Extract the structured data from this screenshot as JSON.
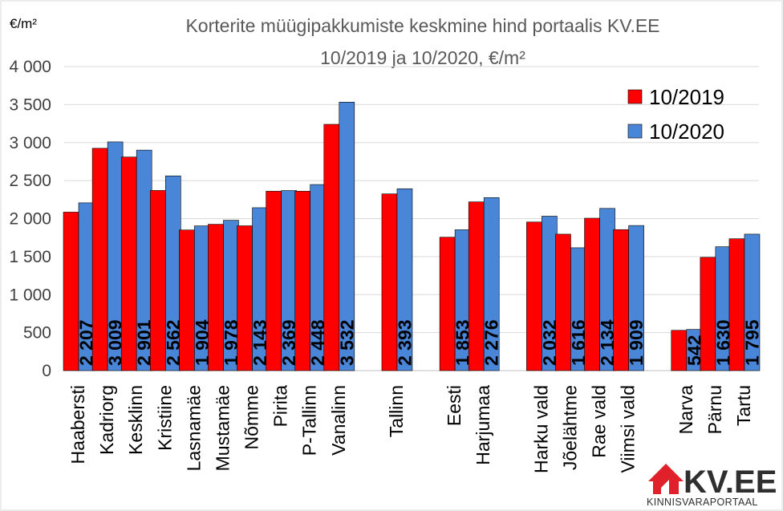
{
  "chart_data": {
    "type": "bar",
    "title": [
      "Korterite müügipakkumiste keskmine hind portaalis KV.EE",
      "10/2019 ja 10/2020, €/m²"
    ],
    "unit_label": "€/m²",
    "ylim": [
      0,
      4000
    ],
    "yticks": [
      0,
      500,
      1000,
      1500,
      2000,
      2500,
      3000,
      3500,
      4000
    ],
    "ytick_labels": [
      "0",
      "500",
      "1 000",
      "1 500",
      "2 000",
      "2 500",
      "3 000",
      "3 500",
      "4 000"
    ],
    "grid": true,
    "legend_position": "top-right",
    "categories": [
      "Haabersti",
      "Kadriorg",
      "Kesklinn",
      "Kristiine",
      "Lasnamäe",
      "Mustamäe",
      "Nõmme",
      "Pirita",
      "P-Tallinn",
      "Vanalinn",
      "",
      "Tallinn",
      "",
      "Eesti",
      "Harjumaa",
      "",
      "Harku vald",
      "Jõelähtme",
      "Rae vald",
      "Viimsi vald",
      "",
      "Narva",
      "Pärnu",
      "Tartu"
    ],
    "series": [
      {
        "name": "10/2019",
        "color": "#ff0000",
        "values": [
          2085,
          2925,
          2810,
          2370,
          1850,
          1925,
          1905,
          2360,
          2360,
          3240,
          null,
          2325,
          null,
          1755,
          2220,
          null,
          1955,
          1795,
          2005,
          1855,
          null,
          530,
          1490,
          1735
        ]
      },
      {
        "name": "10/2020",
        "color": "#4a86d8",
        "values": [
          2207,
          3009,
          2901,
          2562,
          1904,
          1978,
          2143,
          2369,
          2448,
          3532,
          null,
          2393,
          null,
          1853,
          2276,
          null,
          2032,
          1616,
          2134,
          1909,
          null,
          542,
          1630,
          1795
        ]
      }
    ],
    "data_labels": [
      "2 207",
      "3 009",
      "2 901",
      "2 562",
      "1 904",
      "1 978",
      "2 143",
      "2 369",
      "2 448",
      "3 532",
      "",
      "2 393",
      "",
      "1 853",
      "2 276",
      "",
      "2 032",
      "1 616",
      "2 134",
      "1 909",
      "",
      "542",
      "1 630",
      "1 795"
    ]
  },
  "logo": {
    "name": "KV.EE",
    "subtitle": "KINNISVARAPORTAAL",
    "color": "#e0202a"
  }
}
